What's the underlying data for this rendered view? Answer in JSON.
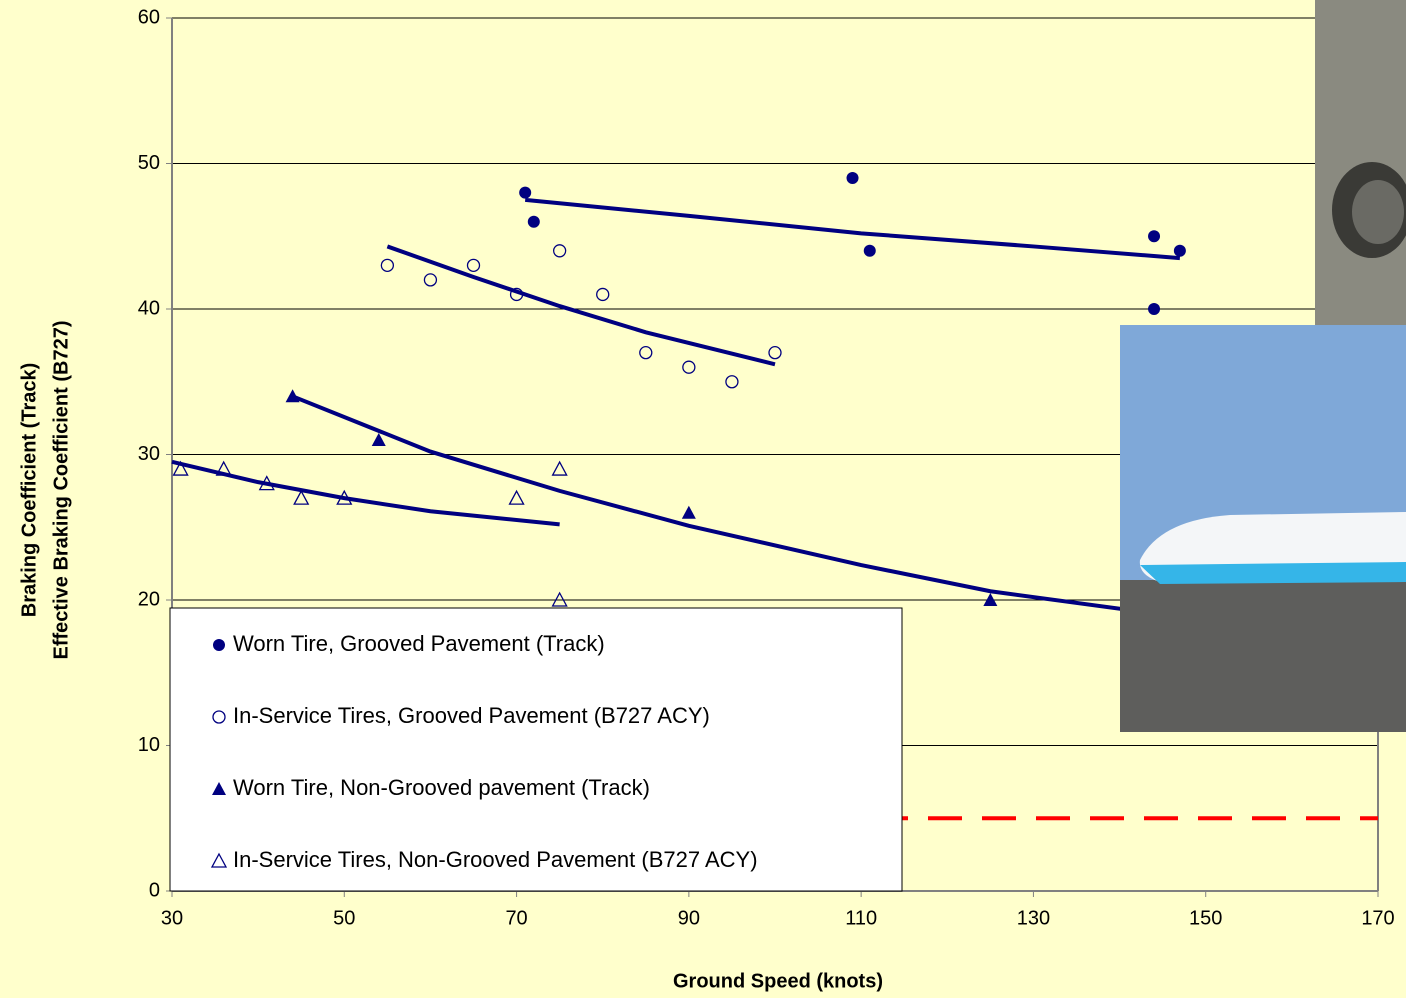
{
  "chart_data": {
    "type": "scatter",
    "xlabel": "Ground Speed (knots)",
    "ylabel": [
      "Braking Coefficient  (Track)",
      "Effective Braking Coefficient  (B727)"
    ],
    "xlim": [
      30,
      170
    ],
    "xticks": [
      30,
      50,
      70,
      90,
      110,
      130,
      150,
      170
    ],
    "ylim": [
      0,
      60
    ],
    "yticks": [
      0,
      10,
      20,
      30,
      40,
      50,
      60
    ],
    "grid": true,
    "reference_line": {
      "value": 5,
      "color": "#ff0000"
    },
    "series": [
      {
        "name": "Worn Tire, Grooved Pavement (Track)",
        "color": "#000080",
        "marker": "circle",
        "filled": true,
        "x": [
          71,
          72,
          109,
          111,
          144,
          144,
          147
        ],
        "values": [
          48,
          46,
          49,
          44,
          45,
          40,
          44
        ],
        "trendline": {
          "x": [
            71,
            90,
            110,
            130,
            147
          ],
          "values": [
            47.5,
            46.4,
            45.2,
            44.3,
            43.5
          ]
        }
      },
      {
        "name": "In-Service Tires, Grooved Pavement (B727 ACY)",
        "color": "#000080",
        "marker": "circle",
        "filled": false,
        "x": [
          55,
          60,
          65,
          70,
          75,
          80,
          85,
          90,
          95,
          100
        ],
        "values": [
          43,
          42,
          43,
          41,
          44,
          41,
          37,
          36,
          35,
          37
        ],
        "trendline": {
          "x": [
            55,
            65,
            75,
            85,
            100
          ],
          "values": [
            44.3,
            42.2,
            40.2,
            38.4,
            36.2
          ]
        }
      },
      {
        "name": "Worn Tire, Non-Grooved pavement (Track)",
        "color": "#000080",
        "marker": "triangle",
        "filled": true,
        "x": [
          44,
          54,
          90,
          125
        ],
        "values": [
          34,
          31,
          26,
          20
        ],
        "trendline": {
          "x": [
            44,
            60,
            75,
            90,
            110,
            125,
            145
          ],
          "values": [
            34,
            30.2,
            27.5,
            25.1,
            22.4,
            20.6,
            19
          ]
        }
      },
      {
        "name": "In-Service Tires, Non-Grooved Pavement (B727 ACY)",
        "color": "#000080",
        "marker": "triangle",
        "filled": false,
        "x": [
          31,
          36,
          41,
          45,
          50,
          70,
          75,
          75
        ],
        "values": [
          29,
          29,
          28,
          27,
          27,
          27,
          29,
          20
        ],
        "trendline": {
          "x": [
            30,
            40,
            50,
            60,
            75
          ],
          "values": [
            29.5,
            28.1,
            27,
            26.1,
            25.2
          ]
        }
      }
    ]
  }
}
